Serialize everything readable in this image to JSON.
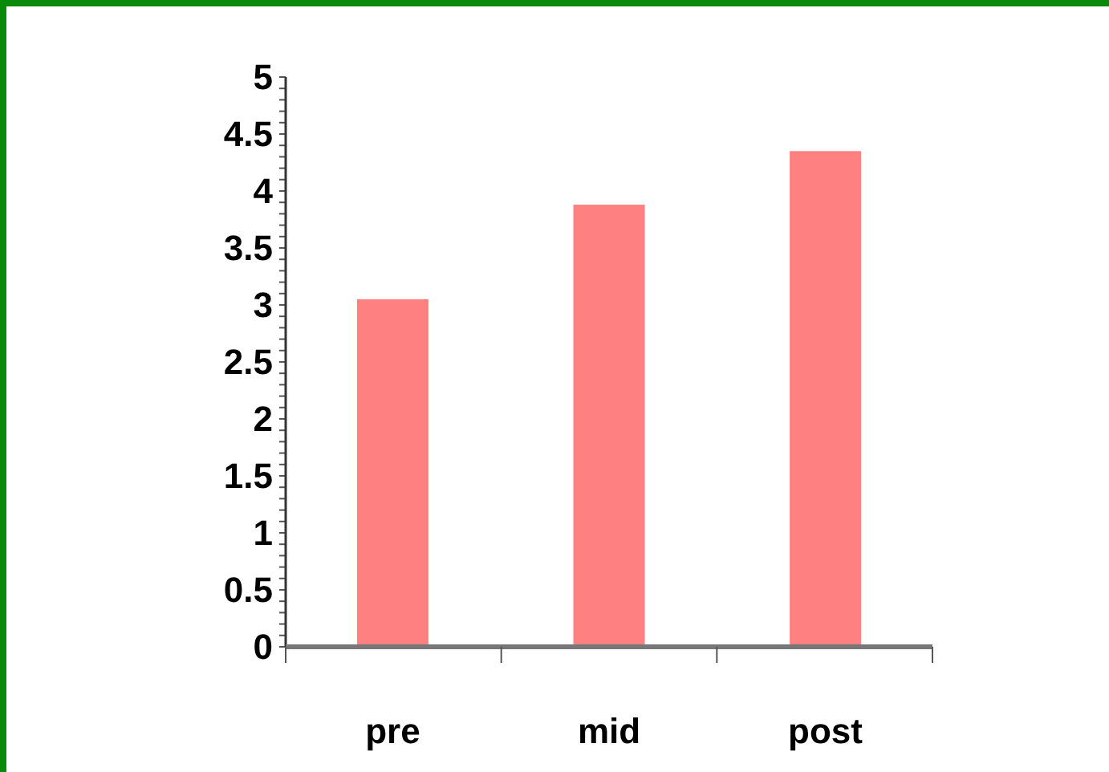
{
  "chart_data": {
    "type": "bar",
    "categories": [
      "pre",
      "mid",
      "post"
    ],
    "values": [
      3.05,
      3.88,
      4.35
    ],
    "color": "#ff8080",
    "ylim": [
      0,
      5
    ],
    "yticks": [
      0,
      0.5,
      1,
      1.5,
      2,
      2.5,
      3,
      3.5,
      4,
      4.5,
      5
    ],
    "grid": false
  }
}
